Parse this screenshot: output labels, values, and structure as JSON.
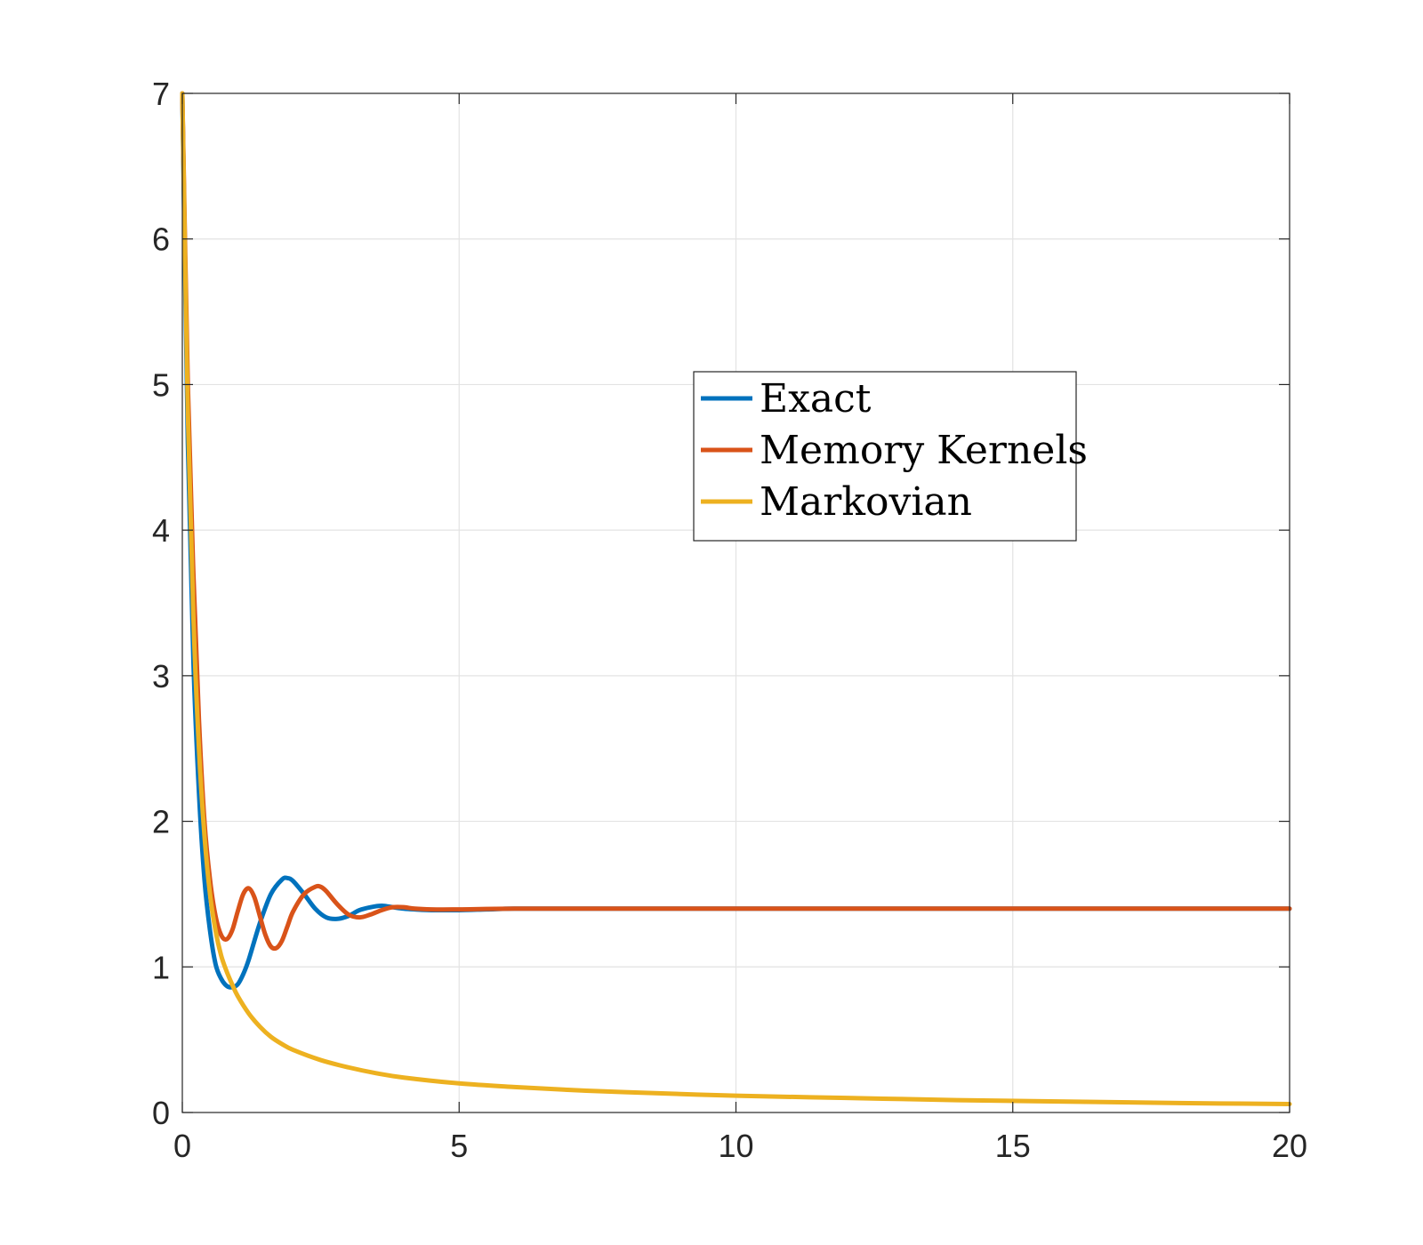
{
  "chart_data": {
    "type": "line",
    "title": "",
    "xlabel": "",
    "ylabel": "",
    "xlim": [
      0,
      20
    ],
    "ylim": [
      0,
      7
    ],
    "xticks": [
      0,
      5,
      10,
      15,
      20
    ],
    "yticks": [
      0,
      1,
      2,
      3,
      4,
      5,
      6,
      7
    ],
    "xtick_labels": [
      "0",
      "5",
      "10",
      "15",
      "20"
    ],
    "ytick_labels": [
      "0",
      "1",
      "2",
      "3",
      "4",
      "5",
      "6",
      "7"
    ],
    "grid": true,
    "legend_position": "center-right",
    "series": [
      {
        "name": "Exact",
        "color": "#0072BD",
        "x": [
          0,
          0.1,
          0.2,
          0.3,
          0.4,
          0.5,
          0.6,
          0.7,
          0.8,
          0.9,
          1.0,
          1.1,
          1.2,
          1.4,
          1.6,
          1.8,
          1.9,
          2.0,
          2.2,
          2.4,
          2.6,
          2.8,
          3.0,
          3.2,
          3.4,
          3.6,
          3.8,
          4.0,
          4.2,
          4.5,
          5.0,
          5.5,
          6.0,
          7.0,
          8.0,
          10.0,
          12.0,
          14.0,
          16.0,
          18.0,
          20.0
        ],
        "y": [
          7.0,
          4.6,
          3.1,
          2.2,
          1.6,
          1.25,
          1.02,
          0.92,
          0.87,
          0.86,
          0.88,
          0.95,
          1.05,
          1.3,
          1.5,
          1.6,
          1.61,
          1.59,
          1.5,
          1.4,
          1.34,
          1.33,
          1.35,
          1.39,
          1.41,
          1.42,
          1.41,
          1.4,
          1.395,
          1.39,
          1.39,
          1.395,
          1.4,
          1.4,
          1.4,
          1.4,
          1.4,
          1.4,
          1.4,
          1.4,
          1.4
        ]
      },
      {
        "name": "Memory Kernels",
        "color": "#D95319",
        "x": [
          0,
          0.1,
          0.2,
          0.3,
          0.4,
          0.5,
          0.6,
          0.7,
          0.8,
          0.9,
          1.0,
          1.1,
          1.2,
          1.3,
          1.4,
          1.5,
          1.6,
          1.7,
          1.8,
          1.9,
          2.0,
          2.2,
          2.4,
          2.5,
          2.6,
          2.8,
          3.0,
          3.2,
          3.4,
          3.6,
          3.8,
          4.0,
          4.2,
          4.5,
          5.0,
          6.0,
          8.0,
          10.0,
          12.0,
          14.0,
          16.0,
          18.0,
          20.0
        ],
        "y": [
          7.0,
          5.0,
          3.7,
          2.7,
          2.0,
          1.6,
          1.35,
          1.22,
          1.19,
          1.25,
          1.38,
          1.5,
          1.54,
          1.48,
          1.35,
          1.22,
          1.14,
          1.13,
          1.18,
          1.28,
          1.38,
          1.5,
          1.55,
          1.55,
          1.52,
          1.43,
          1.36,
          1.34,
          1.36,
          1.39,
          1.41,
          1.41,
          1.4,
          1.395,
          1.395,
          1.4,
          1.4,
          1.4,
          1.4,
          1.4,
          1.4,
          1.4,
          1.4
        ]
      },
      {
        "name": "Markovian",
        "color": "#EDB120",
        "x": [
          0,
          0.1,
          0.2,
          0.3,
          0.4,
          0.5,
          0.6,
          0.7,
          0.8,
          0.9,
          1.0,
          1.2,
          1.4,
          1.6,
          1.8,
          2.0,
          2.5,
          3.0,
          3.5,
          4.0,
          5.0,
          6.0,
          7.0,
          8.0,
          10.0,
          12.0,
          14.0,
          16.0,
          18.0,
          20.0
        ],
        "y": [
          7.0,
          4.8,
          3.4,
          2.5,
          1.9,
          1.5,
          1.25,
          1.08,
          0.97,
          0.88,
          0.8,
          0.68,
          0.59,
          0.52,
          0.47,
          0.43,
          0.36,
          0.31,
          0.27,
          0.24,
          0.2,
          0.175,
          0.155,
          0.14,
          0.115,
          0.1,
          0.085,
          0.075,
          0.065,
          0.058
        ]
      }
    ]
  }
}
